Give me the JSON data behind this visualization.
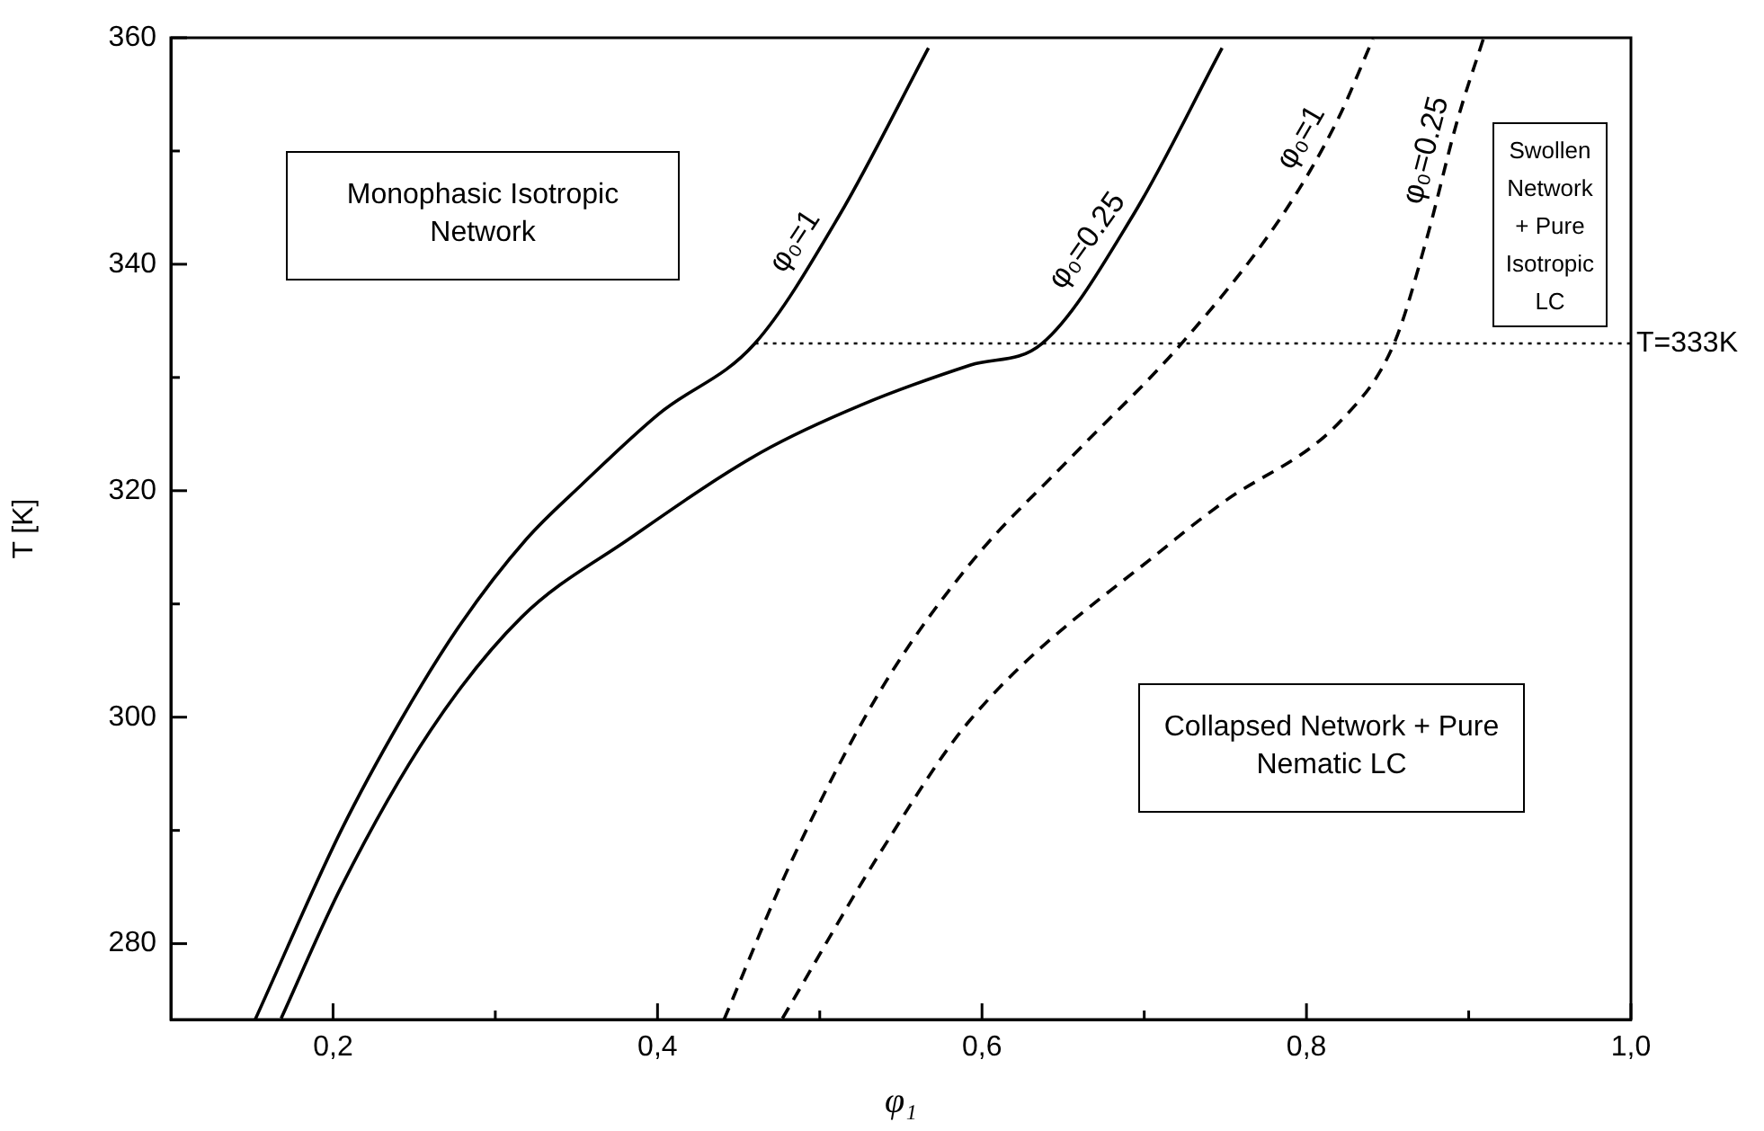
{
  "chart_data": {
    "type": "line",
    "xlabel": "φ₁",
    "ylabel": "T [K]",
    "xlim": [
      0.1,
      1.0
    ],
    "ylim": [
      273.3,
      360
    ],
    "xticks": [
      {
        "value": 0.2,
        "label": "0,2"
      },
      {
        "value": 0.3,
        "label": null
      },
      {
        "value": 0.4,
        "label": "0,4"
      },
      {
        "value": 0.5,
        "label": null
      },
      {
        "value": 0.6,
        "label": "0,6"
      },
      {
        "value": 0.7,
        "label": null
      },
      {
        "value": 0.8,
        "label": "0,8"
      },
      {
        "value": 0.9,
        "label": null
      },
      {
        "value": 1.0,
        "label": "1,0"
      }
    ],
    "yticks": [
      280,
      {
        "value": 290,
        "label": null
      },
      300,
      {
        "value": 310,
        "label": null
      },
      320,
      {
        "value": 330,
        "label": null
      },
      340,
      {
        "value": 350,
        "label": null
      },
      360
    ],
    "grid": false,
    "legend": false,
    "marker": "none",
    "series": [
      {
        "name": "φ₀=1",
        "color": "#000000",
        "line_style": "solid",
        "x": [
          0.152,
          0.205,
          0.242,
          0.279,
          0.319,
          0.353,
          0.401,
          0.46,
          0.512,
          0.567
        ],
        "values": [
          273.3,
          290,
          299.8,
          308.3,
          315.7,
          320.5,
          326.8,
          333,
          344.3,
          359.1
        ]
      },
      {
        "name": "φ₀=0.25",
        "color": "#000000",
        "line_style": "solid",
        "x": [
          0.168,
          0.205,
          0.26,
          0.316,
          0.382,
          0.464,
          0.526,
          0.593,
          0.637,
          0.693,
          0.748
        ],
        "values": [
          273.4,
          285,
          298.8,
          308.8,
          315.7,
          323.4,
          327.6,
          331.1,
          333,
          344.3,
          359.1
        ]
      },
      {
        "name": "φ₀=1",
        "color": "#000000",
        "line_style": "dashed",
        "x": [
          0.441,
          0.482,
          0.538,
          0.593,
          0.656,
          0.723,
          0.785,
          0.819,
          0.841
        ],
        "values": [
          273.3,
          287.1,
          302.5,
          313.6,
          323.1,
          333,
          344.3,
          352.7,
          359.9
        ]
      },
      {
        "name": "φ₀=0.25",
        "color": "#000000",
        "line_style": "dashed",
        "x": [
          0.477,
          0.538,
          0.593,
          0.719,
          0.748,
          0.822,
          0.854,
          0.874,
          0.893,
          0.909
        ],
        "values": [
          273.4,
          288.2,
          299.8,
          315.7,
          318.9,
          326.3,
          333,
          342.2,
          352.7,
          359.9
        ]
      }
    ],
    "ref_lines": [
      {
        "axis": "y",
        "value": 333,
        "label": "T=333K",
        "line_style": "dotted"
      }
    ],
    "annotations": [
      "Monophasic Isotropic Network",
      "Swollen Network + Pure Isotropic LC",
      "Collapsed Network + Pure Nematic LC"
    ]
  }
}
